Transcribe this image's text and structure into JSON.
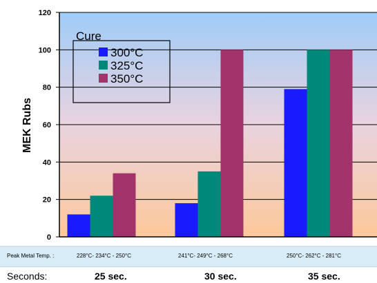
{
  "chart_data": {
    "type": "bar",
    "ylabel": "MEK Rubs",
    "ylim": [
      0,
      120
    ],
    "yticks": [
      0,
      20,
      40,
      60,
      80,
      100,
      120
    ],
    "categories": [
      "25 sec.",
      "30 sec.",
      "35 sec."
    ],
    "legend": {
      "title": "Cure",
      "placement": "top-left"
    },
    "series": [
      {
        "name": "300°C",
        "color": "#1a1aff",
        "values": [
          12,
          18,
          79
        ]
      },
      {
        "name": "325°C",
        "color": "#00897a",
        "values": [
          22,
          35,
          100
        ]
      },
      {
        "name": "350°C",
        "color": "#a3336b",
        "values": [
          34,
          100,
          100
        ]
      }
    ],
    "grid": "horizontal",
    "background_gradient": [
      "#9fccf8",
      "#fcc89a"
    ]
  },
  "peak_metal_temp": {
    "label": "Peak Metal Temp. :",
    "values": [
      "228°C- 234°C - 250°C",
      "241°C- 249°C - 268°C",
      "250°C- 262°C - 281°C"
    ]
  },
  "seconds": {
    "label": "Seconds:"
  }
}
